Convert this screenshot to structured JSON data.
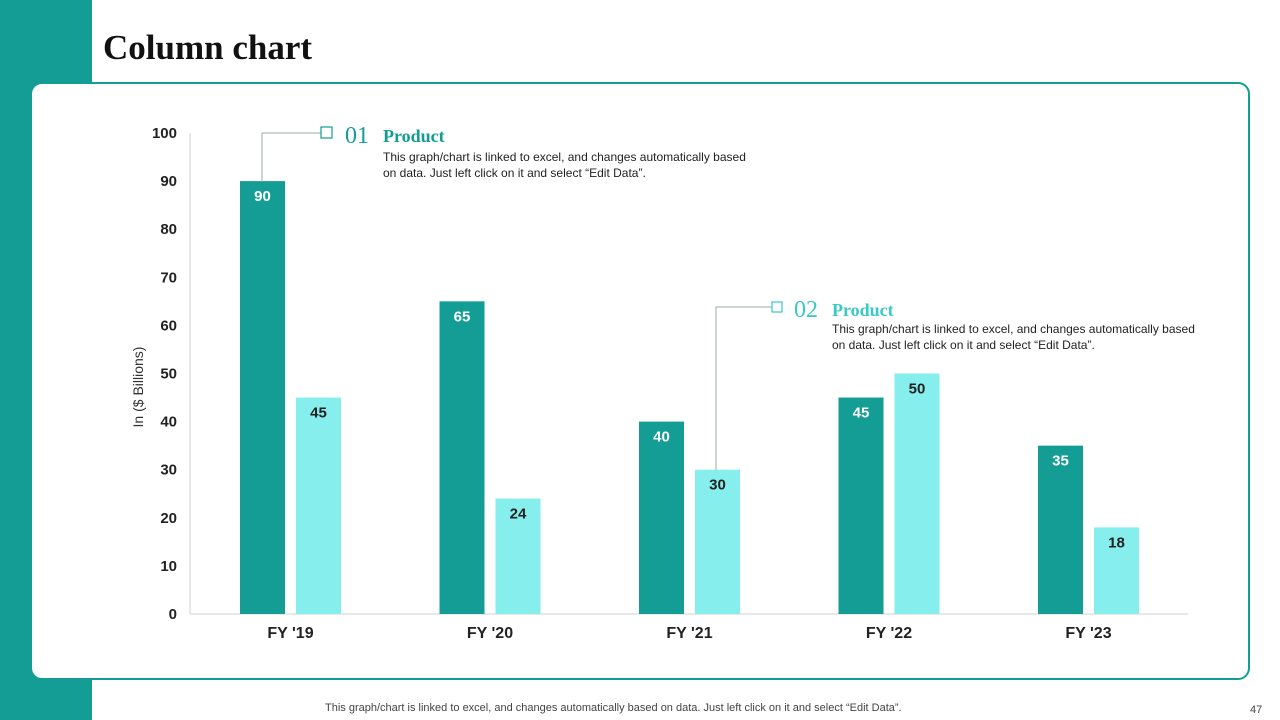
{
  "title": "Column chart",
  "colors": {
    "series1": "#139d95",
    "series2": "#86eeec",
    "accent": "#139d95",
    "accent_light": "#39c9c6"
  },
  "chart_data": {
    "type": "bar",
    "categories": [
      "FY '19",
      "FY '20",
      "FY '21",
      "FY '22",
      "FY '23"
    ],
    "series": [
      {
        "name": "Product 01",
        "values": [
          90,
          65,
          40,
          45,
          35
        ]
      },
      {
        "name": "Product 02",
        "values": [
          45,
          24,
          30,
          50,
          18
        ]
      }
    ],
    "ylabel": "In ($ Billions)",
    "xlabel": "",
    "ylim": [
      0,
      100
    ],
    "yticks": [
      0,
      10,
      20,
      30,
      40,
      50,
      60,
      70,
      80,
      90,
      100
    ],
    "grid": false
  },
  "annotations": [
    {
      "number": "01",
      "heading": "Product",
      "text": "This graph/chart is linked to excel, and changes automatically based on data. Just left click on it and select “Edit Data”."
    },
    {
      "number": "02",
      "heading": "Product",
      "text": "This graph/chart is linked to excel, and changes automatically based on data. Just left click on it and select “Edit Data”."
    }
  ],
  "footer": "This graph/chart is linked to excel,  and changes automatically based on data. Just left click on it and select “Edit Data”.",
  "page_number": "47"
}
